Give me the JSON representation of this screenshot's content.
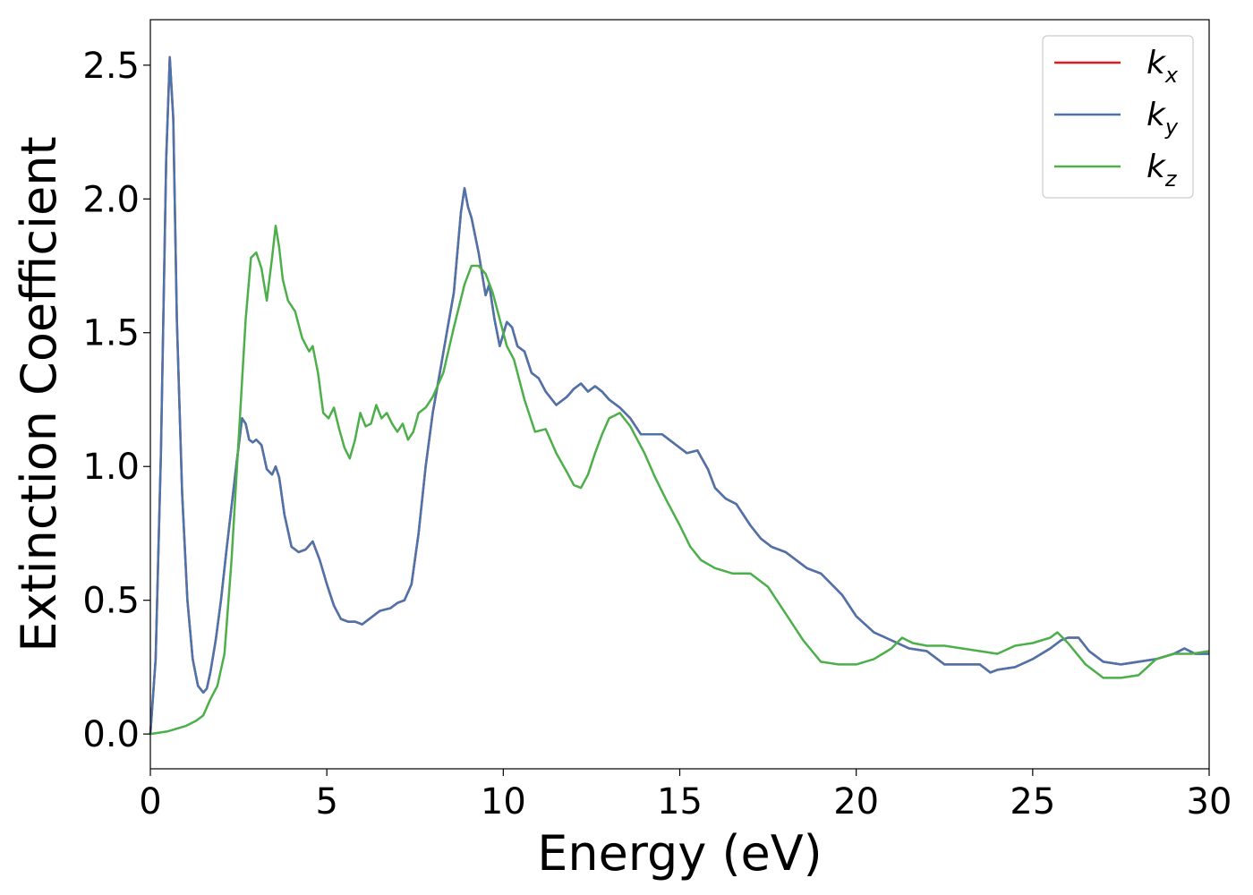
{
  "chart_data": {
    "type": "line",
    "xlabel": "Energy (eV)",
    "ylabel": "Extinction Coefficient",
    "xlim": [
      0,
      30
    ],
    "ylim": [
      -0.13,
      2.67
    ],
    "xticks": [
      0,
      5,
      10,
      15,
      20,
      25,
      30
    ],
    "yticks": [
      0.0,
      0.5,
      1.0,
      1.5,
      2.0,
      2.5
    ],
    "xtick_labels": [
      "0",
      "5",
      "10",
      "15",
      "20",
      "25",
      "30"
    ],
    "ytick_labels": [
      "0.0",
      "0.5",
      "1.0",
      "1.5",
      "2.0",
      "2.5"
    ],
    "grid": false,
    "legend_position": "top-right",
    "series": [
      {
        "name": "k_x",
        "label_base": "k",
        "label_sub": "x",
        "color": "#e41a1c",
        "x": [
          0,
          0.15,
          0.3,
          0.45,
          0.55,
          0.65,
          0.75,
          0.9,
          1.05,
          1.2,
          1.35,
          1.5,
          1.6,
          1.7,
          1.85,
          2.0,
          2.15,
          2.3,
          2.45,
          2.6,
          2.7,
          2.8,
          2.9,
          3.0,
          3.15,
          3.3,
          3.45,
          3.55,
          3.65,
          3.8,
          4.0,
          4.2,
          4.4,
          4.6,
          4.8,
          5.0,
          5.2,
          5.4,
          5.6,
          5.8,
          6.0,
          6.2,
          6.5,
          6.8,
          7.0,
          7.2,
          7.4,
          7.6,
          7.8,
          8.0,
          8.2,
          8.4,
          8.6,
          8.8,
          8.9,
          9.0,
          9.1,
          9.3,
          9.5,
          9.6,
          9.75,
          9.9,
          10.1,
          10.25,
          10.4,
          10.6,
          10.8,
          11.0,
          11.2,
          11.5,
          11.8,
          12.0,
          12.2,
          12.4,
          12.6,
          12.8,
          13.0,
          13.3,
          13.6,
          13.9,
          14.2,
          14.5,
          14.8,
          15.0,
          15.2,
          15.5,
          15.8,
          16.0,
          16.3,
          16.6,
          17.0,
          17.3,
          17.6,
          18.0,
          18.3,
          18.6,
          19.0,
          19.3,
          19.6,
          20.0,
          20.5,
          21.0,
          21.5,
          22.0,
          22.5,
          23.0,
          23.5,
          23.8,
          24.0,
          24.5,
          25.0,
          25.5,
          25.8,
          26.0,
          26.3,
          26.6,
          27.0,
          27.5,
          28.0,
          28.5,
          29.0,
          29.3,
          29.6,
          30.0
        ],
        "y": [
          0.0,
          0.28,
          1.05,
          2.15,
          2.53,
          2.3,
          1.55,
          0.9,
          0.5,
          0.28,
          0.18,
          0.155,
          0.17,
          0.23,
          0.35,
          0.5,
          0.68,
          0.85,
          1.02,
          1.18,
          1.16,
          1.1,
          1.09,
          1.1,
          1.08,
          0.99,
          0.97,
          1.0,
          0.96,
          0.82,
          0.7,
          0.68,
          0.69,
          0.72,
          0.65,
          0.56,
          0.48,
          0.43,
          0.42,
          0.42,
          0.41,
          0.43,
          0.46,
          0.47,
          0.49,
          0.5,
          0.56,
          0.75,
          1.0,
          1.2,
          1.35,
          1.5,
          1.65,
          1.95,
          2.04,
          1.97,
          1.93,
          1.8,
          1.64,
          1.68,
          1.55,
          1.45,
          1.54,
          1.52,
          1.45,
          1.43,
          1.35,
          1.33,
          1.28,
          1.23,
          1.26,
          1.29,
          1.31,
          1.28,
          1.3,
          1.28,
          1.25,
          1.22,
          1.18,
          1.12,
          1.12,
          1.12,
          1.09,
          1.07,
          1.05,
          1.06,
          0.99,
          0.92,
          0.88,
          0.86,
          0.78,
          0.73,
          0.7,
          0.68,
          0.65,
          0.62,
          0.6,
          0.56,
          0.52,
          0.44,
          0.38,
          0.35,
          0.32,
          0.31,
          0.26,
          0.26,
          0.26,
          0.23,
          0.24,
          0.25,
          0.28,
          0.32,
          0.35,
          0.36,
          0.36,
          0.31,
          0.27,
          0.26,
          0.27,
          0.28,
          0.3,
          0.32,
          0.3,
          0.3
        ]
      },
      {
        "name": "k_y",
        "label_base": "k",
        "label_sub": "y",
        "color": "#4a74ab",
        "x": [
          0,
          0.15,
          0.3,
          0.45,
          0.55,
          0.65,
          0.75,
          0.9,
          1.05,
          1.2,
          1.35,
          1.5,
          1.6,
          1.7,
          1.85,
          2.0,
          2.15,
          2.3,
          2.45,
          2.6,
          2.7,
          2.8,
          2.9,
          3.0,
          3.15,
          3.3,
          3.45,
          3.55,
          3.65,
          3.8,
          4.0,
          4.2,
          4.4,
          4.6,
          4.8,
          5.0,
          5.2,
          5.4,
          5.6,
          5.8,
          6.0,
          6.2,
          6.5,
          6.8,
          7.0,
          7.2,
          7.4,
          7.6,
          7.8,
          8.0,
          8.2,
          8.4,
          8.6,
          8.8,
          8.9,
          9.0,
          9.1,
          9.3,
          9.5,
          9.6,
          9.75,
          9.9,
          10.1,
          10.25,
          10.4,
          10.6,
          10.8,
          11.0,
          11.2,
          11.5,
          11.8,
          12.0,
          12.2,
          12.4,
          12.6,
          12.8,
          13.0,
          13.3,
          13.6,
          13.9,
          14.2,
          14.5,
          14.8,
          15.0,
          15.2,
          15.5,
          15.8,
          16.0,
          16.3,
          16.6,
          17.0,
          17.3,
          17.6,
          18.0,
          18.3,
          18.6,
          19.0,
          19.3,
          19.6,
          20.0,
          20.5,
          21.0,
          21.5,
          22.0,
          22.5,
          23.0,
          23.5,
          23.8,
          24.0,
          24.5,
          25.0,
          25.5,
          25.8,
          26.0,
          26.3,
          26.6,
          27.0,
          27.5,
          28.0,
          28.5,
          29.0,
          29.3,
          29.6,
          30.0
        ],
        "y": [
          0.0,
          0.28,
          1.05,
          2.15,
          2.53,
          2.3,
          1.55,
          0.9,
          0.5,
          0.28,
          0.18,
          0.155,
          0.17,
          0.23,
          0.35,
          0.5,
          0.68,
          0.85,
          1.02,
          1.18,
          1.16,
          1.1,
          1.09,
          1.1,
          1.08,
          0.99,
          0.97,
          1.0,
          0.96,
          0.82,
          0.7,
          0.68,
          0.69,
          0.72,
          0.65,
          0.56,
          0.48,
          0.43,
          0.42,
          0.42,
          0.41,
          0.43,
          0.46,
          0.47,
          0.49,
          0.5,
          0.56,
          0.75,
          1.0,
          1.2,
          1.35,
          1.5,
          1.65,
          1.95,
          2.04,
          1.97,
          1.93,
          1.8,
          1.64,
          1.68,
          1.55,
          1.45,
          1.54,
          1.52,
          1.45,
          1.43,
          1.35,
          1.33,
          1.28,
          1.23,
          1.26,
          1.29,
          1.31,
          1.28,
          1.3,
          1.28,
          1.25,
          1.22,
          1.18,
          1.12,
          1.12,
          1.12,
          1.09,
          1.07,
          1.05,
          1.06,
          0.99,
          0.92,
          0.88,
          0.86,
          0.78,
          0.73,
          0.7,
          0.68,
          0.65,
          0.62,
          0.6,
          0.56,
          0.52,
          0.44,
          0.38,
          0.35,
          0.32,
          0.31,
          0.26,
          0.26,
          0.26,
          0.23,
          0.24,
          0.25,
          0.28,
          0.32,
          0.35,
          0.36,
          0.36,
          0.31,
          0.27,
          0.26,
          0.27,
          0.28,
          0.3,
          0.32,
          0.3,
          0.3
        ]
      },
      {
        "name": "k_z",
        "label_base": "k",
        "label_sub": "z",
        "color": "#4daf4a",
        "x": [
          0,
          0.5,
          1.0,
          1.3,
          1.5,
          1.7,
          1.9,
          2.1,
          2.3,
          2.5,
          2.7,
          2.85,
          3.0,
          3.15,
          3.3,
          3.45,
          3.55,
          3.65,
          3.75,
          3.9,
          4.1,
          4.3,
          4.5,
          4.6,
          4.75,
          4.9,
          5.05,
          5.2,
          5.35,
          5.5,
          5.65,
          5.8,
          5.95,
          6.1,
          6.25,
          6.4,
          6.55,
          6.7,
          6.85,
          7.0,
          7.15,
          7.3,
          7.45,
          7.6,
          7.8,
          8.0,
          8.3,
          8.6,
          8.9,
          9.1,
          9.3,
          9.5,
          9.7,
          9.9,
          10.1,
          10.3,
          10.6,
          10.9,
          11.2,
          11.5,
          11.8,
          12.0,
          12.2,
          12.4,
          12.6,
          12.8,
          13.0,
          13.3,
          13.6,
          14.0,
          14.3,
          14.6,
          15.0,
          15.3,
          15.6,
          16.0,
          16.5,
          17.0,
          17.5,
          18.0,
          18.5,
          19.0,
          19.5,
          20.0,
          20.5,
          21.0,
          21.3,
          21.6,
          22.0,
          22.5,
          23.0,
          23.5,
          24.0,
          24.5,
          25.0,
          25.5,
          25.7,
          26.0,
          26.5,
          27.0,
          27.5,
          28.0,
          28.5,
          29.0,
          29.5,
          30.0
        ],
        "y": [
          0.0,
          0.01,
          0.03,
          0.05,
          0.07,
          0.13,
          0.18,
          0.3,
          0.65,
          1.1,
          1.55,
          1.78,
          1.8,
          1.74,
          1.62,
          1.78,
          1.9,
          1.82,
          1.7,
          1.62,
          1.58,
          1.48,
          1.43,
          1.45,
          1.35,
          1.2,
          1.18,
          1.22,
          1.14,
          1.07,
          1.03,
          1.1,
          1.2,
          1.15,
          1.16,
          1.23,
          1.18,
          1.2,
          1.16,
          1.13,
          1.16,
          1.1,
          1.13,
          1.2,
          1.22,
          1.26,
          1.35,
          1.52,
          1.68,
          1.75,
          1.75,
          1.72,
          1.65,
          1.55,
          1.45,
          1.4,
          1.25,
          1.13,
          1.14,
          1.05,
          0.98,
          0.93,
          0.92,
          0.97,
          1.05,
          1.12,
          1.18,
          1.2,
          1.15,
          1.05,
          0.96,
          0.88,
          0.78,
          0.7,
          0.65,
          0.62,
          0.6,
          0.6,
          0.55,
          0.45,
          0.35,
          0.27,
          0.26,
          0.26,
          0.28,
          0.32,
          0.36,
          0.34,
          0.33,
          0.33,
          0.32,
          0.31,
          0.3,
          0.33,
          0.34,
          0.36,
          0.38,
          0.34,
          0.26,
          0.21,
          0.21,
          0.22,
          0.28,
          0.3,
          0.3,
          0.31
        ]
      }
    ]
  }
}
